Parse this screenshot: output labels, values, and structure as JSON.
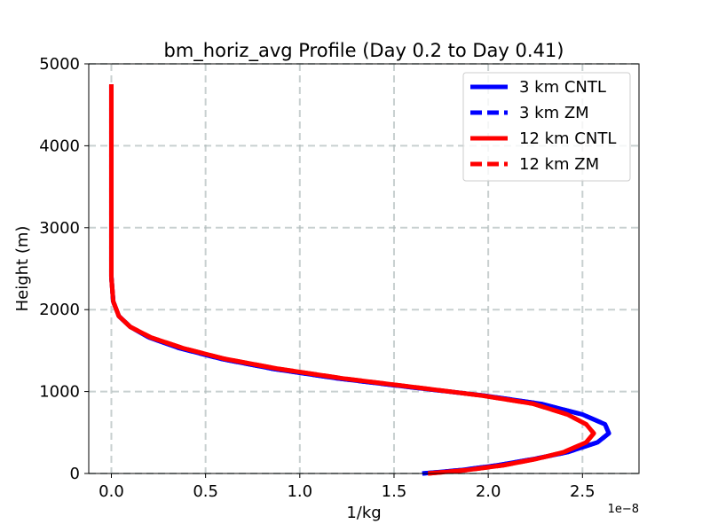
{
  "chart_data": {
    "type": "line",
    "title": "bm_horiz_avg Profile (Day 0.2 to Day 0.41)",
    "xlabel": "1/kg",
    "ylabel": "Height (m)",
    "x_offset_label": "1e−8",
    "x_scale": 1e-08,
    "xlim": [
      -0.12,
      2.8
    ],
    "ylim": [
      0,
      5000
    ],
    "xticks": [
      0.0,
      0.5,
      1.0,
      1.5,
      2.0,
      2.5
    ],
    "xtick_labels": [
      "0.0",
      "0.5",
      "1.0",
      "1.5",
      "2.0",
      "2.5"
    ],
    "yticks": [
      0,
      1000,
      2000,
      3000,
      4000,
      5000
    ],
    "ytick_labels": [
      "0",
      "1000",
      "2000",
      "3000",
      "4000",
      "5000"
    ],
    "grid": true,
    "legend_position": "top-right",
    "series": [
      {
        "name": "3 km CNTL",
        "color": "#0000ff",
        "dash": "solid",
        "x": [
          1.65,
          1.85,
          2.05,
          2.25,
          2.42,
          2.58,
          2.64,
          2.62,
          2.5,
          2.28,
          1.98,
          1.6,
          1.2,
          0.85,
          0.58,
          0.36,
          0.2,
          0.1,
          0.04,
          0.01,
          0.0,
          0.0,
          0.0,
          0.0
        ],
        "y": [
          0,
          40,
          100,
          180,
          260,
          380,
          490,
          600,
          720,
          850,
          950,
          1050,
          1160,
          1280,
          1400,
          1530,
          1660,
          1790,
          1920,
          2100,
          2400,
          3000,
          4000,
          4750
        ]
      },
      {
        "name": "3 km ZM",
        "color": "#0000ff",
        "dash": "dashed",
        "x": [
          1.65,
          1.85,
          2.05,
          2.25,
          2.42,
          2.58,
          2.64,
          2.62,
          2.5,
          2.28,
          1.98,
          1.6,
          1.2,
          0.85,
          0.58,
          0.36,
          0.2,
          0.1,
          0.04,
          0.01,
          0.0,
          0.0,
          0.0,
          0.0
        ],
        "y": [
          0,
          40,
          100,
          180,
          260,
          380,
          490,
          600,
          720,
          850,
          950,
          1050,
          1160,
          1280,
          1400,
          1530,
          1660,
          1790,
          1920,
          2100,
          2400,
          3000,
          4000,
          4750
        ]
      },
      {
        "name": "12 km CNTL",
        "color": "#ff0000",
        "dash": "solid",
        "x": [
          1.68,
          1.88,
          2.08,
          2.26,
          2.4,
          2.52,
          2.56,
          2.52,
          2.42,
          2.24,
          1.97,
          1.62,
          1.23,
          0.88,
          0.6,
          0.38,
          0.21,
          0.1,
          0.04,
          0.01,
          0.0,
          0.0,
          0.0,
          0.0
        ],
        "y": [
          0,
          40,
          100,
          180,
          260,
          380,
          490,
          600,
          720,
          850,
          950,
          1050,
          1160,
          1280,
          1400,
          1530,
          1660,
          1790,
          1920,
          2100,
          2400,
          3000,
          4000,
          4750
        ]
      },
      {
        "name": "12 km ZM",
        "color": "#ff0000",
        "dash": "dashed",
        "x": [
          1.68,
          1.88,
          2.08,
          2.26,
          2.4,
          2.52,
          2.56,
          2.52,
          2.42,
          2.24,
          1.97,
          1.62,
          1.23,
          0.88,
          0.6,
          0.38,
          0.21,
          0.1,
          0.04,
          0.01,
          0.0,
          0.0,
          0.0,
          0.0
        ],
        "y": [
          0,
          40,
          100,
          180,
          260,
          380,
          490,
          600,
          720,
          850,
          950,
          1050,
          1160,
          1280,
          1400,
          1530,
          1660,
          1790,
          1920,
          2100,
          2400,
          3000,
          4000,
          4750
        ]
      }
    ]
  }
}
